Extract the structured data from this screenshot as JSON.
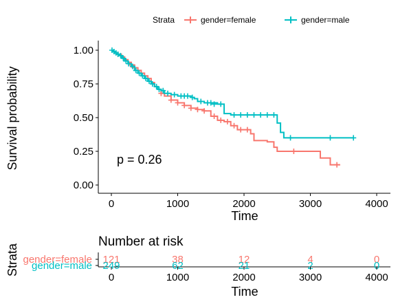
{
  "chart_data": [
    {
      "type": "line",
      "subtype": "kaplan-meier step",
      "title": "",
      "xlabel": "Time",
      "ylabel": "Survival probability",
      "xlim": [
        0,
        4000
      ],
      "ylim": [
        0,
        1
      ],
      "xticks": [
        "0",
        "1000",
        "2000",
        "3000",
        "4000"
      ],
      "yticks": [
        "0.00",
        "0.25",
        "0.50",
        "0.75",
        "1.00"
      ],
      "grid": false,
      "legend": {
        "title": "Strata",
        "position": "top",
        "entries": [
          "gender=female",
          "gender=male"
        ]
      },
      "annotation": "p = 0.26",
      "colors": {
        "gender=female": "#F8766D",
        "gender=male": "#00BFC4"
      },
      "series": [
        {
          "name": "gender=female",
          "steps": [
            [
              0,
              1.0
            ],
            [
              30,
              0.99
            ],
            [
              60,
              0.98
            ],
            [
              100,
              0.97
            ],
            [
              150,
              0.95
            ],
            [
              200,
              0.93
            ],
            [
              250,
              0.91
            ],
            [
              300,
              0.89
            ],
            [
              350,
              0.87
            ],
            [
              400,
              0.85
            ],
            [
              450,
              0.83
            ],
            [
              500,
              0.81
            ],
            [
              550,
              0.79
            ],
            [
              600,
              0.76
            ],
            [
              650,
              0.73
            ],
            [
              700,
              0.71
            ],
            [
              750,
              0.68
            ],
            [
              800,
              0.66
            ],
            [
              900,
              0.63
            ],
            [
              1000,
              0.61
            ],
            [
              1100,
              0.59
            ],
            [
              1200,
              0.57
            ],
            [
              1300,
              0.56
            ],
            [
              1400,
              0.55
            ],
            [
              1500,
              0.51
            ],
            [
              1600,
              0.48
            ],
            [
              1700,
              0.47
            ],
            [
              1800,
              0.44
            ],
            [
              1900,
              0.41
            ],
            [
              2100,
              0.38
            ],
            [
              2150,
              0.33
            ],
            [
              2350,
              0.32
            ],
            [
              2450,
              0.28
            ],
            [
              2500,
              0.25
            ],
            [
              3150,
              0.2
            ],
            [
              3300,
              0.15
            ]
          ],
          "end": 3450,
          "censored": [
            [
              100,
              0.97
            ],
            [
              300,
              0.89
            ],
            [
              350,
              0.87
            ],
            [
              400,
              0.85
            ],
            [
              750,
              0.68
            ],
            [
              900,
              0.63
            ],
            [
              1000,
              0.61
            ],
            [
              1100,
              0.59
            ],
            [
              1200,
              0.57
            ],
            [
              1300,
              0.56
            ],
            [
              1400,
              0.55
            ],
            [
              1550,
              0.51
            ],
            [
              1650,
              0.48
            ],
            [
              1750,
              0.47
            ],
            [
              1850,
              0.44
            ],
            [
              1950,
              0.41
            ],
            [
              2050,
              0.41
            ],
            [
              2750,
              0.25
            ],
            [
              3400,
              0.15
            ]
          ]
        },
        {
          "name": "gender=male",
          "steps": [
            [
              0,
              1.0
            ],
            [
              20,
              0.99
            ],
            [
              50,
              0.98
            ],
            [
              80,
              0.97
            ],
            [
              120,
              0.96
            ],
            [
              160,
              0.94
            ],
            [
              200,
              0.92
            ],
            [
              250,
              0.9
            ],
            [
              300,
              0.88
            ],
            [
              350,
              0.85
            ],
            [
              400,
              0.83
            ],
            [
              450,
              0.81
            ],
            [
              500,
              0.79
            ],
            [
              550,
              0.77
            ],
            [
              600,
              0.75
            ],
            [
              650,
              0.73
            ],
            [
              700,
              0.71
            ],
            [
              750,
              0.7
            ],
            [
              800,
              0.68
            ],
            [
              900,
              0.67
            ],
            [
              1000,
              0.66
            ],
            [
              1200,
              0.65
            ],
            [
              1250,
              0.64
            ],
            [
              1300,
              0.62
            ],
            [
              1400,
              0.61
            ],
            [
              1600,
              0.6
            ],
            [
              1700,
              0.53
            ],
            [
              1800,
              0.52
            ],
            [
              2500,
              0.46
            ],
            [
              2550,
              0.39
            ],
            [
              2600,
              0.35
            ]
          ],
          "end": 3650,
          "censored": [
            [
              10,
              1.0
            ],
            [
              40,
              0.99
            ],
            [
              70,
              0.98
            ],
            [
              100,
              0.97
            ],
            [
              140,
              0.96
            ],
            [
              180,
              0.94
            ],
            [
              220,
              0.92
            ],
            [
              260,
              0.9
            ],
            [
              320,
              0.88
            ],
            [
              370,
              0.85
            ],
            [
              420,
              0.83
            ],
            [
              470,
              0.81
            ],
            [
              520,
              0.79
            ],
            [
              570,
              0.77
            ],
            [
              620,
              0.75
            ],
            [
              680,
              0.73
            ],
            [
              720,
              0.71
            ],
            [
              780,
              0.7
            ],
            [
              850,
              0.68
            ],
            [
              950,
              0.67
            ],
            [
              1050,
              0.66
            ],
            [
              1100,
              0.66
            ],
            [
              1150,
              0.66
            ],
            [
              1220,
              0.65
            ],
            [
              1350,
              0.62
            ],
            [
              1450,
              0.61
            ],
            [
              1500,
              0.61
            ],
            [
              1550,
              0.6
            ],
            [
              1650,
              0.6
            ],
            [
              1850,
              0.52
            ],
            [
              1950,
              0.52
            ],
            [
              2050,
              0.52
            ],
            [
              2150,
              0.52
            ],
            [
              2250,
              0.52
            ],
            [
              2350,
              0.52
            ],
            [
              2450,
              0.52
            ],
            [
              2700,
              0.35
            ],
            [
              3300,
              0.35
            ],
            [
              3650,
              0.35
            ]
          ]
        }
      ]
    },
    {
      "type": "table",
      "title": "Number at risk",
      "xlabel": "Time",
      "ylabel": "Strata",
      "xlim": [
        0,
        4000
      ],
      "xticks": [
        "0",
        "1000",
        "2000",
        "3000",
        "4000"
      ],
      "times": [
        0,
        1000,
        2000,
        3000,
        4000
      ],
      "rows": [
        {
          "name": "gender=female",
          "color": "#F8766D",
          "values": [
            "121",
            "38",
            "12",
            "4",
            "0"
          ]
        },
        {
          "name": "gender=male",
          "color": "#00BFC4",
          "values": [
            "249",
            "62",
            "21",
            "2",
            "0"
          ]
        }
      ]
    }
  ]
}
